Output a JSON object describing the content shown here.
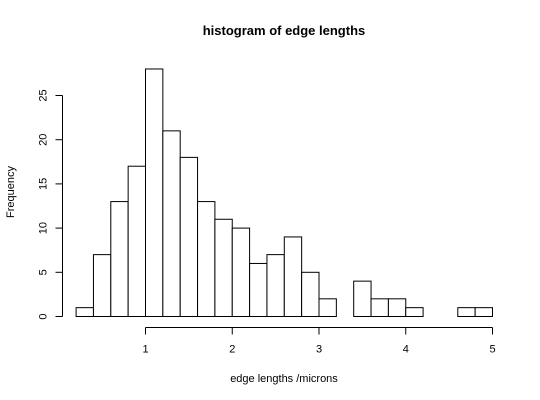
{
  "chart_data": {
    "type": "bar",
    "title": "histogram of edge lengths",
    "xlabel": "edge lengths /microns",
    "ylabel": "Frequency",
    "bin_width": 0.2,
    "bin_start": 0.2,
    "values": [
      1,
      7,
      13,
      17,
      28,
      21,
      18,
      13,
      11,
      10,
      6,
      7,
      9,
      5,
      2,
      0,
      4,
      2,
      2,
      1,
      0,
      0,
      1,
      1
    ],
    "xlim": [
      0.2,
      5.0
    ],
    "ylim": [
      0,
      28
    ],
    "x_ticks": [
      1,
      2,
      3,
      4,
      5
    ],
    "x_tick_labels": [
      "1",
      "2",
      "3",
      "4",
      "5"
    ],
    "y_ticks": [
      0,
      5,
      10,
      15,
      20,
      25
    ],
    "y_tick_labels": [
      "0",
      "5",
      "10",
      "15",
      "20",
      "25"
    ],
    "grid": false,
    "legend": "none",
    "bar_fill": "#ffffff",
    "bar_stroke": "#000000"
  }
}
